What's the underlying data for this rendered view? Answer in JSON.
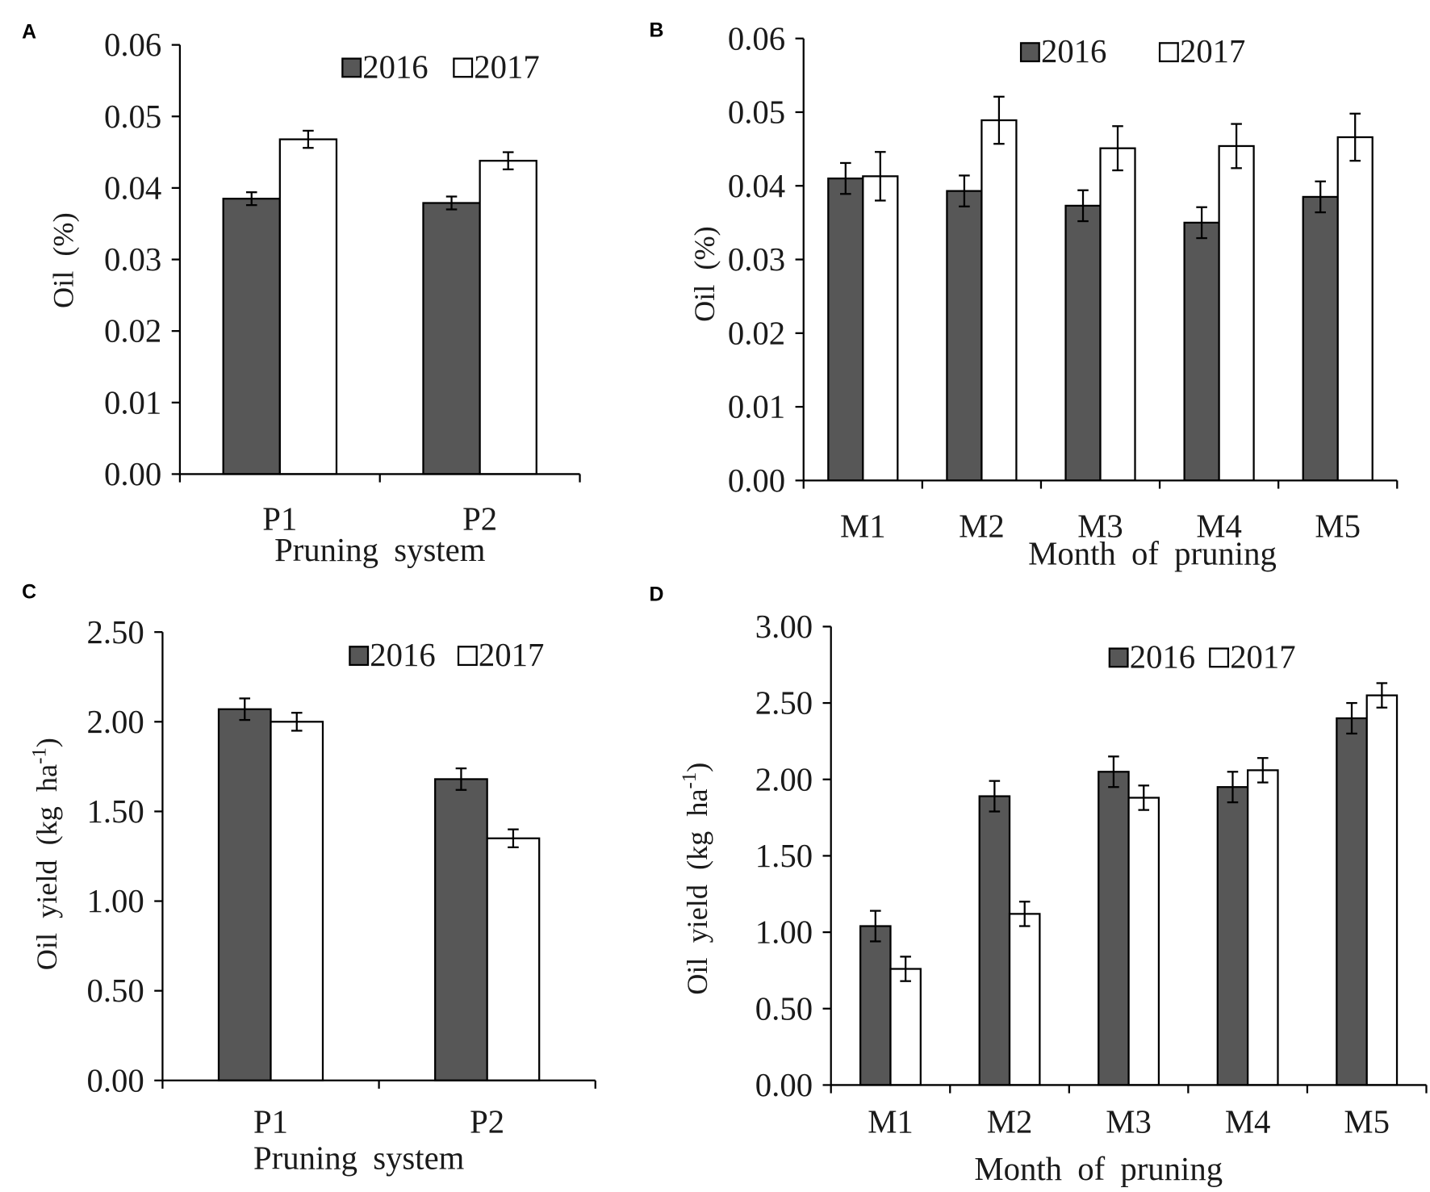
{
  "chart_data": [
    {
      "panel": "A",
      "type": "bar",
      "categories": [
        "P1",
        "P2"
      ],
      "series": [
        {
          "name": "2016",
          "values": [
            0.0385,
            0.0379
          ],
          "errors": [
            0.0009,
            0.0009
          ],
          "color": "#575757"
        },
        {
          "name": "2017",
          "values": [
            0.0468,
            0.0438
          ],
          "errors": [
            0.0012,
            0.0012
          ],
          "color": "#ffffff"
        }
      ],
      "xlabel": "Pruning system",
      "ylabel": {
        "main": "Oil (%)"
      },
      "ylim": [
        0,
        0.06
      ],
      "yticks": [
        "0.00",
        "0.01",
        "0.02",
        "0.03",
        "0.04",
        "0.05",
        "0.06"
      ],
      "legend": "top-right",
      "grid": false
    },
    {
      "panel": "B",
      "type": "bar",
      "categories": [
        "M1",
        "M2",
        "M3",
        "M4",
        "M5"
      ],
      "series": [
        {
          "name": "2016",
          "values": [
            0.041,
            0.0393,
            0.0373,
            0.035,
            0.0385
          ],
          "errors": [
            0.0021,
            0.0021,
            0.0021,
            0.0021,
            0.0021
          ],
          "color": "#575757"
        },
        {
          "name": "2017",
          "values": [
            0.0413,
            0.0489,
            0.0451,
            0.0454,
            0.0466
          ],
          "errors": [
            0.0033,
            0.0032,
            0.003,
            0.003,
            0.0032
          ],
          "color": "#ffffff"
        }
      ],
      "xlabel": "Month of pruning",
      "ylabel": {
        "main": "Oil (%)"
      },
      "ylim": [
        0,
        0.06
      ],
      "yticks": [
        "0.00",
        "0.01",
        "0.02",
        "0.03",
        "0.04",
        "0.05",
        "0.06"
      ],
      "legend": "top-right",
      "grid": false
    },
    {
      "panel": "C",
      "type": "bar",
      "categories": [
        "P1",
        "P2"
      ],
      "series": [
        {
          "name": "2016",
          "values": [
            2.07,
            1.68
          ],
          "errors": [
            0.06,
            0.06
          ],
          "color": "#575757"
        },
        {
          "name": "2017",
          "values": [
            2.0,
            1.35
          ],
          "errors": [
            0.05,
            0.05
          ],
          "color": "#ffffff"
        }
      ],
      "xlabel": "Pruning system",
      "ylabel": {
        "main": "Oil yield (kg ha",
        "sup": "-1",
        "tail": ")"
      },
      "ylim": [
        0,
        2.5
      ],
      "yticks": [
        "0.00",
        "0.50",
        "1.00",
        "1.50",
        "2.00",
        "2.50"
      ],
      "legend": "top-right",
      "grid": false
    },
    {
      "panel": "D",
      "type": "bar",
      "categories": [
        "M1",
        "M2",
        "M3",
        "M4",
        "M5"
      ],
      "series": [
        {
          "name": "2016",
          "values": [
            1.04,
            1.89,
            2.05,
            1.95,
            2.4
          ],
          "errors": [
            0.1,
            0.1,
            0.1,
            0.1,
            0.1
          ],
          "color": "#575757"
        },
        {
          "name": "2017",
          "values": [
            0.76,
            1.12,
            1.88,
            2.06,
            2.55
          ],
          "errors": [
            0.08,
            0.08,
            0.08,
            0.08,
            0.08
          ],
          "color": "#ffffff"
        }
      ],
      "xlabel": "Month of pruning",
      "ylabel": {
        "main": "Oil yield (kg ha",
        "sup": "-1",
        "tail": ")"
      },
      "ylim": [
        0,
        3.0
      ],
      "yticks": [
        "0.00",
        "0.50",
        "1.00",
        "1.50",
        "2.00",
        "2.50",
        "3.00"
      ],
      "legend": "top-right",
      "grid": false
    }
  ]
}
